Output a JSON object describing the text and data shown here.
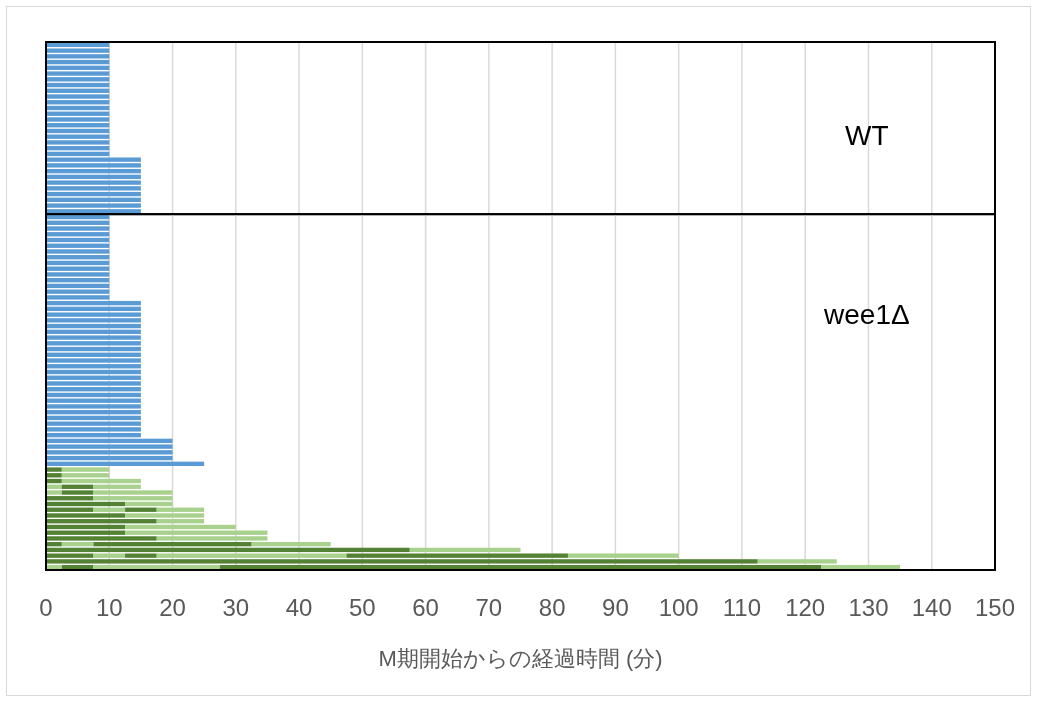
{
  "chart_data": [
    {
      "type": "bar",
      "orientation": "horizontal",
      "stacked": true,
      "categories": [
        null,
        null,
        null,
        null,
        null,
        null,
        null,
        null,
        null,
        null,
        null,
        null,
        null,
        null,
        null,
        null,
        null,
        null,
        null,
        null,
        null,
        null,
        null,
        null,
        null,
        null,
        null,
        null,
        null,
        null
      ],
      "series": [
        {
          "color": "#5b9bd5",
          "values": [
            10,
            10,
            10,
            10,
            10,
            10,
            10,
            10,
            10,
            10,
            10,
            10,
            10,
            10,
            10,
            10,
            10,
            10,
            10,
            10,
            15,
            15,
            15,
            15,
            15,
            15,
            15,
            15,
            15,
            15
          ]
        }
      ],
      "xlim": [
        0,
        150
      ],
      "xticks": [
        0,
        10,
        20,
        30,
        40,
        50,
        60,
        70,
        80,
        90,
        100,
        110,
        120,
        130,
        140,
        150
      ],
      "grid": "x",
      "tick_labels": false,
      "annotations": [
        "WT"
      ]
    },
    {
      "type": "bar",
      "orientation": "horizontal",
      "stacked": true,
      "categories": [
        null,
        null,
        null,
        null,
        null,
        null,
        null,
        null,
        null,
        null,
        null,
        null,
        null,
        null,
        null,
        null,
        null,
        null,
        null,
        null,
        null,
        null,
        null,
        null,
        null,
        null,
        null,
        null,
        null,
        null,
        null,
        null,
        null,
        null,
        null,
        null,
        null,
        null,
        null,
        null,
        null,
        null,
        null,
        null,
        null,
        null,
        null,
        null,
        null,
        null,
        null,
        null,
        null,
        null,
        null,
        null,
        null,
        null,
        null,
        null,
        null,
        null
      ],
      "series": [
        {
          "values": [
            10,
            10,
            10,
            10,
            10,
            10,
            10,
            10,
            10,
            10,
            10,
            10,
            10,
            10,
            10,
            15,
            15,
            15,
            15,
            15,
            15,
            15,
            15,
            15,
            15,
            15,
            15,
            15,
            15,
            15,
            15,
            15,
            15,
            15,
            15,
            15,
            15,
            15,
            15,
            20,
            20,
            20,
            20,
            25,
            2.5,
            2.5,
            2.5,
            2.5,
            2.5,
            7.5,
            12.5,
            7.5,
            12.5,
            17.5,
            12.5,
            12.5,
            17.5,
            2.5,
            57.5,
            7.5,
            112.5,
            2.5
          ],
          "colors": [
            "#5b9bd5",
            "#5b9bd5",
            "#5b9bd5",
            "#5b9bd5",
            "#5b9bd5",
            "#5b9bd5",
            "#5b9bd5",
            "#5b9bd5",
            "#5b9bd5",
            "#5b9bd5",
            "#5b9bd5",
            "#5b9bd5",
            "#5b9bd5",
            "#5b9bd5",
            "#5b9bd5",
            "#5b9bd5",
            "#5b9bd5",
            "#5b9bd5",
            "#5b9bd5",
            "#5b9bd5",
            "#5b9bd5",
            "#5b9bd5",
            "#5b9bd5",
            "#5b9bd5",
            "#5b9bd5",
            "#5b9bd5",
            "#5b9bd5",
            "#5b9bd5",
            "#5b9bd5",
            "#5b9bd5",
            "#5b9bd5",
            "#5b9bd5",
            "#5b9bd5",
            "#5b9bd5",
            "#5b9bd5",
            "#5b9bd5",
            "#5b9bd5",
            "#5b9bd5",
            "#5b9bd5",
            "#5b9bd5",
            "#5b9bd5",
            "#5b9bd5",
            "#5b9bd5",
            "#5b9bd5",
            "#548235",
            "#548235",
            "#548235",
            "#a9d18e",
            "#a9d18e",
            "#548235",
            "#548235",
            "#548235",
            "#548235",
            "#548235",
            "#548235",
            "#548235",
            "#548235",
            "#548235",
            "#548235",
            "#548235",
            "#548235",
            "#a9d18e"
          ]
        },
        {
          "values": [
            null,
            null,
            null,
            null,
            null,
            null,
            null,
            null,
            null,
            null,
            null,
            null,
            null,
            null,
            null,
            null,
            null,
            null,
            null,
            null,
            null,
            null,
            null,
            null,
            null,
            null,
            null,
            null,
            null,
            null,
            null,
            null,
            null,
            null,
            null,
            null,
            null,
            null,
            null,
            null,
            null,
            null,
            null,
            null,
            7.5,
            7.5,
            12.5,
            5,
            5,
            12.5,
            7.5,
            5,
            12.5,
            7.5,
            17.5,
            22.5,
            17.5,
            5,
            17.5,
            5,
            12.5,
            5
          ],
          "colors": [
            null,
            null,
            null,
            null,
            null,
            null,
            null,
            null,
            null,
            null,
            null,
            null,
            null,
            null,
            null,
            null,
            null,
            null,
            null,
            null,
            null,
            null,
            null,
            null,
            null,
            null,
            null,
            null,
            null,
            null,
            null,
            null,
            null,
            null,
            null,
            null,
            null,
            null,
            null,
            null,
            null,
            null,
            null,
            null,
            "#a9d18e",
            "#a9d18e",
            "#a9d18e",
            "#548235",
            "#548235",
            "#a9d18e",
            "#a9d18e",
            "#a9d18e",
            "#a9d18e",
            "#a9d18e",
            "#a9d18e",
            "#a9d18e",
            "#a9d18e",
            "#a9d18e",
            "#a9d18e",
            "#a9d18e",
            "#a9d18e",
            "#548235"
          ]
        },
        {
          "values": [
            null,
            null,
            null,
            null,
            null,
            null,
            null,
            null,
            null,
            null,
            null,
            null,
            null,
            null,
            null,
            null,
            null,
            null,
            null,
            null,
            null,
            null,
            null,
            null,
            null,
            null,
            null,
            null,
            null,
            null,
            null,
            null,
            null,
            null,
            null,
            null,
            null,
            null,
            null,
            null,
            null,
            null,
            null,
            null,
            null,
            null,
            null,
            7.5,
            12.5,
            null,
            null,
            5,
            null,
            null,
            null,
            null,
            null,
            25,
            null,
            5,
            null,
            20
          ],
          "colors": [
            null,
            null,
            null,
            null,
            null,
            null,
            null,
            null,
            null,
            null,
            null,
            null,
            null,
            null,
            null,
            null,
            null,
            null,
            null,
            null,
            null,
            null,
            null,
            null,
            null,
            null,
            null,
            null,
            null,
            null,
            null,
            null,
            null,
            null,
            null,
            null,
            null,
            null,
            null,
            null,
            null,
            null,
            null,
            null,
            null,
            null,
            null,
            "#a9d18e",
            "#a9d18e",
            null,
            null,
            "#548235",
            null,
            null,
            null,
            null,
            null,
            "#548235",
            null,
            "#548235",
            null,
            "#a9d18e"
          ]
        },
        {
          "values": [
            null,
            null,
            null,
            null,
            null,
            null,
            null,
            null,
            null,
            null,
            null,
            null,
            null,
            null,
            null,
            null,
            null,
            null,
            null,
            null,
            null,
            null,
            null,
            null,
            null,
            null,
            null,
            null,
            null,
            null,
            null,
            null,
            null,
            null,
            null,
            null,
            null,
            null,
            null,
            null,
            null,
            null,
            null,
            null,
            null,
            null,
            null,
            null,
            null,
            null,
            null,
            7.5,
            null,
            null,
            null,
            null,
            null,
            12.5,
            null,
            30,
            null,
            95
          ],
          "colors": [
            null,
            null,
            null,
            null,
            null,
            null,
            null,
            null,
            null,
            null,
            null,
            null,
            null,
            null,
            null,
            null,
            null,
            null,
            null,
            null,
            null,
            null,
            null,
            null,
            null,
            null,
            null,
            null,
            null,
            null,
            null,
            null,
            null,
            null,
            null,
            null,
            null,
            null,
            null,
            null,
            null,
            null,
            null,
            null,
            null,
            null,
            null,
            null,
            null,
            null,
            null,
            "#a9d18e",
            null,
            null,
            null,
            null,
            null,
            "#a9d18e",
            null,
            "#a9d18e",
            null,
            "#548235"
          ]
        },
        {
          "values": [
            null,
            null,
            null,
            null,
            null,
            null,
            null,
            null,
            null,
            null,
            null,
            null,
            null,
            null,
            null,
            null,
            null,
            null,
            null,
            null,
            null,
            null,
            null,
            null,
            null,
            null,
            null,
            null,
            null,
            null,
            null,
            null,
            null,
            null,
            null,
            null,
            null,
            null,
            null,
            null,
            null,
            null,
            null,
            null,
            null,
            null,
            null,
            null,
            null,
            null,
            null,
            null,
            null,
            null,
            null,
            null,
            null,
            null,
            null,
            35,
            null,
            12.5
          ],
          "colors": [
            null,
            null,
            null,
            null,
            null,
            null,
            null,
            null,
            null,
            null,
            null,
            null,
            null,
            null,
            null,
            null,
            null,
            null,
            null,
            null,
            null,
            null,
            null,
            null,
            null,
            null,
            null,
            null,
            null,
            null,
            null,
            null,
            null,
            null,
            null,
            null,
            null,
            null,
            null,
            null,
            null,
            null,
            null,
            null,
            null,
            null,
            null,
            null,
            null,
            null,
            null,
            null,
            null,
            null,
            null,
            null,
            null,
            null,
            null,
            "#548235",
            null,
            "#a9d18e"
          ]
        },
        {
          "values": [
            null,
            null,
            null,
            null,
            null,
            null,
            null,
            null,
            null,
            null,
            null,
            null,
            null,
            null,
            null,
            null,
            null,
            null,
            null,
            null,
            null,
            null,
            null,
            null,
            null,
            null,
            null,
            null,
            null,
            null,
            null,
            null,
            null,
            null,
            null,
            null,
            null,
            null,
            null,
            null,
            null,
            null,
            null,
            null,
            null,
            null,
            null,
            null,
            null,
            null,
            null,
            null,
            null,
            null,
            null,
            null,
            null,
            null,
            null,
            17.5,
            null,
            null
          ],
          "colors": [
            null,
            null,
            null,
            null,
            null,
            null,
            null,
            null,
            null,
            null,
            null,
            null,
            null,
            null,
            null,
            null,
            null,
            null,
            null,
            null,
            null,
            null,
            null,
            null,
            null,
            null,
            null,
            null,
            null,
            null,
            null,
            null,
            null,
            null,
            null,
            null,
            null,
            null,
            null,
            null,
            null,
            null,
            null,
            null,
            null,
            null,
            null,
            null,
            null,
            null,
            null,
            null,
            null,
            null,
            null,
            null,
            null,
            null,
            null,
            "#a9d18e",
            null,
            null
          ]
        }
      ],
      "xlim": [
        0,
        150
      ],
      "xticks": [
        0,
        10,
        20,
        30,
        40,
        50,
        60,
        70,
        80,
        90,
        100,
        110,
        120,
        130,
        140,
        150
      ],
      "grid": "x",
      "tick_labels": "x",
      "xlabel": "M期開始からの経過時間 (分)",
      "annotations": [
        "wee1Δ"
      ]
    }
  ]
}
